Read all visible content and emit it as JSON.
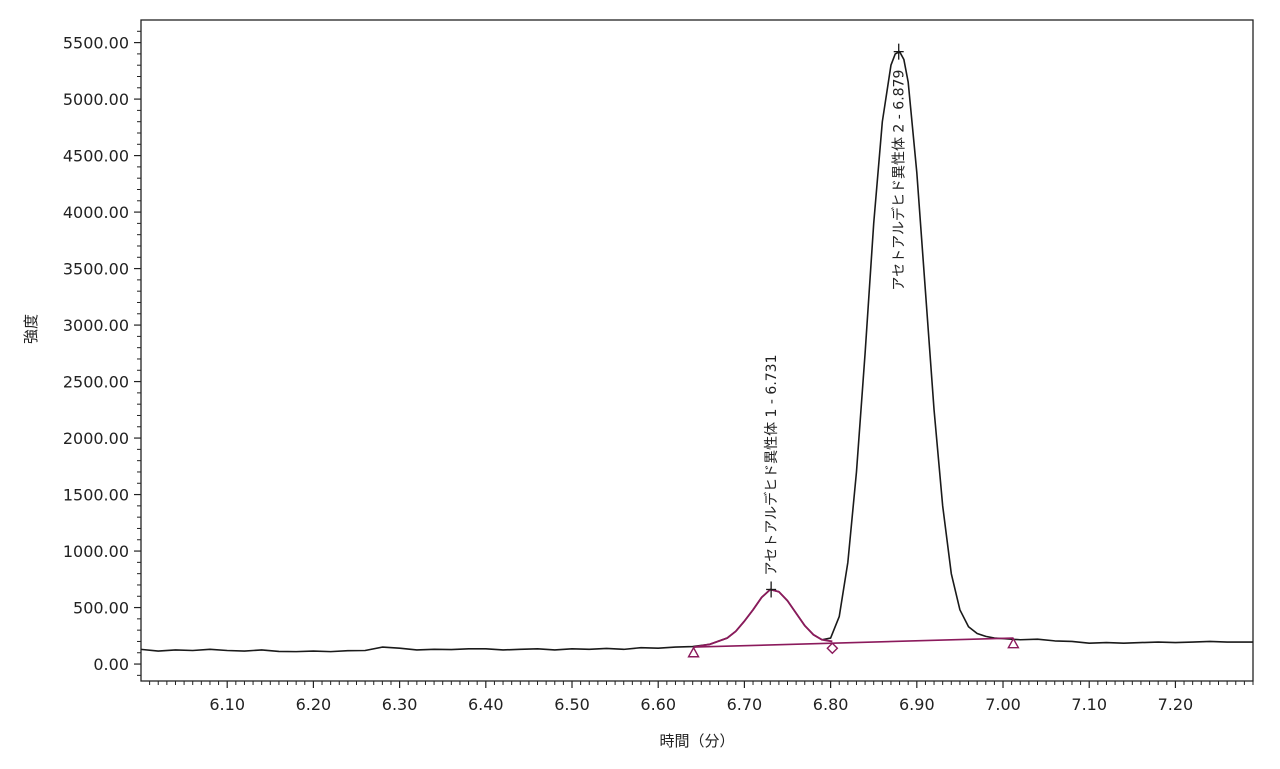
{
  "chart_data": {
    "type": "line",
    "xlabel": "時間（分）",
    "ylabel": "強度",
    "xlim": [
      6.0,
      7.29
    ],
    "ylim": [
      -150,
      5700
    ],
    "x_ticks": [
      "6.10",
      "6.20",
      "6.30",
      "6.40",
      "6.50",
      "6.60",
      "6.70",
      "6.80",
      "6.90",
      "7.00",
      "7.10",
      "7.20"
    ],
    "y_ticks": [
      "0.00",
      "500.00",
      "1000.00",
      "1500.00",
      "2000.00",
      "2500.00",
      "3000.00",
      "3500.00",
      "4000.00",
      "4500.00",
      "5000.00",
      "5500.00"
    ],
    "grid": false,
    "colors": {
      "trace": "#1a1a1a",
      "integration": "#8b1a5c",
      "axis": "#222222"
    },
    "series": [
      {
        "x": [
          6.0,
          6.02,
          6.04,
          6.06,
          6.08,
          6.1,
          6.12,
          6.14,
          6.16,
          6.18,
          6.2,
          6.22,
          6.24,
          6.26,
          6.28,
          6.3,
          6.32,
          6.34,
          6.36,
          6.38,
          6.4,
          6.42,
          6.44,
          6.46,
          6.48,
          6.5,
          6.52,
          6.54,
          6.56,
          6.58,
          6.6,
          6.62,
          6.64,
          6.66,
          6.68,
          6.69,
          6.7,
          6.71,
          6.72,
          6.73,
          6.74,
          6.75,
          6.76,
          6.77,
          6.78,
          6.79,
          6.8,
          6.81,
          6.82,
          6.83,
          6.84,
          6.85,
          6.86,
          6.87,
          6.875,
          6.88,
          6.885,
          6.89,
          6.9,
          6.91,
          6.92,
          6.93,
          6.94,
          6.95,
          6.96,
          6.97,
          6.98,
          6.99,
          7.0,
          7.02,
          7.04,
          7.06,
          7.08,
          7.1,
          7.12,
          7.14,
          7.16,
          7.18,
          7.2,
          7.22,
          7.24,
          7.26,
          7.29
        ],
        "y": [
          130,
          115,
          125,
          120,
          130,
          120,
          115,
          125,
          112,
          110,
          115,
          110,
          118,
          120,
          150,
          140,
          125,
          130,
          128,
          135,
          135,
          125,
          130,
          135,
          125,
          135,
          130,
          138,
          130,
          145,
          140,
          150,
          155,
          175,
          230,
          290,
          380,
          480,
          590,
          660,
          640,
          560,
          450,
          340,
          260,
          215,
          230,
          420,
          900,
          1700,
          2750,
          3900,
          4800,
          5300,
          5400,
          5420,
          5350,
          5150,
          4350,
          3300,
          2250,
          1400,
          800,
          480,
          330,
          270,
          245,
          230,
          225,
          215,
          220,
          205,
          200,
          185,
          190,
          185,
          190,
          195,
          190,
          195,
          200,
          195,
          195
        ]
      }
    ],
    "integration": {
      "peak1_x": [
        6.641,
        6.66,
        6.68,
        6.69,
        6.7,
        6.71,
        6.72,
        6.73,
        6.74,
        6.75,
        6.76,
        6.77,
        6.78,
        6.79,
        6.802
      ],
      "peak1_y": [
        150,
        175,
        230,
        290,
        380,
        480,
        590,
        660,
        640,
        560,
        450,
        340,
        260,
        215,
        200
      ],
      "baseline_x": [
        6.641,
        7.012
      ],
      "baseline_y": [
        150,
        230
      ],
      "markers": [
        {
          "x": 6.641,
          "y": 100,
          "shape": "triangle"
        },
        {
          "x": 6.802,
          "y": 140,
          "shape": "diamond"
        },
        {
          "x": 7.012,
          "y": 180,
          "shape": "triangle"
        }
      ]
    },
    "peaks": [
      {
        "x": 6.731,
        "y": 660,
        "label": "アセトアルデヒド異性体 1 - 6.731"
      },
      {
        "x": 6.879,
        "y": 5420,
        "label": "アセトアルデヒド異性体 2 - 6.879"
      }
    ]
  }
}
